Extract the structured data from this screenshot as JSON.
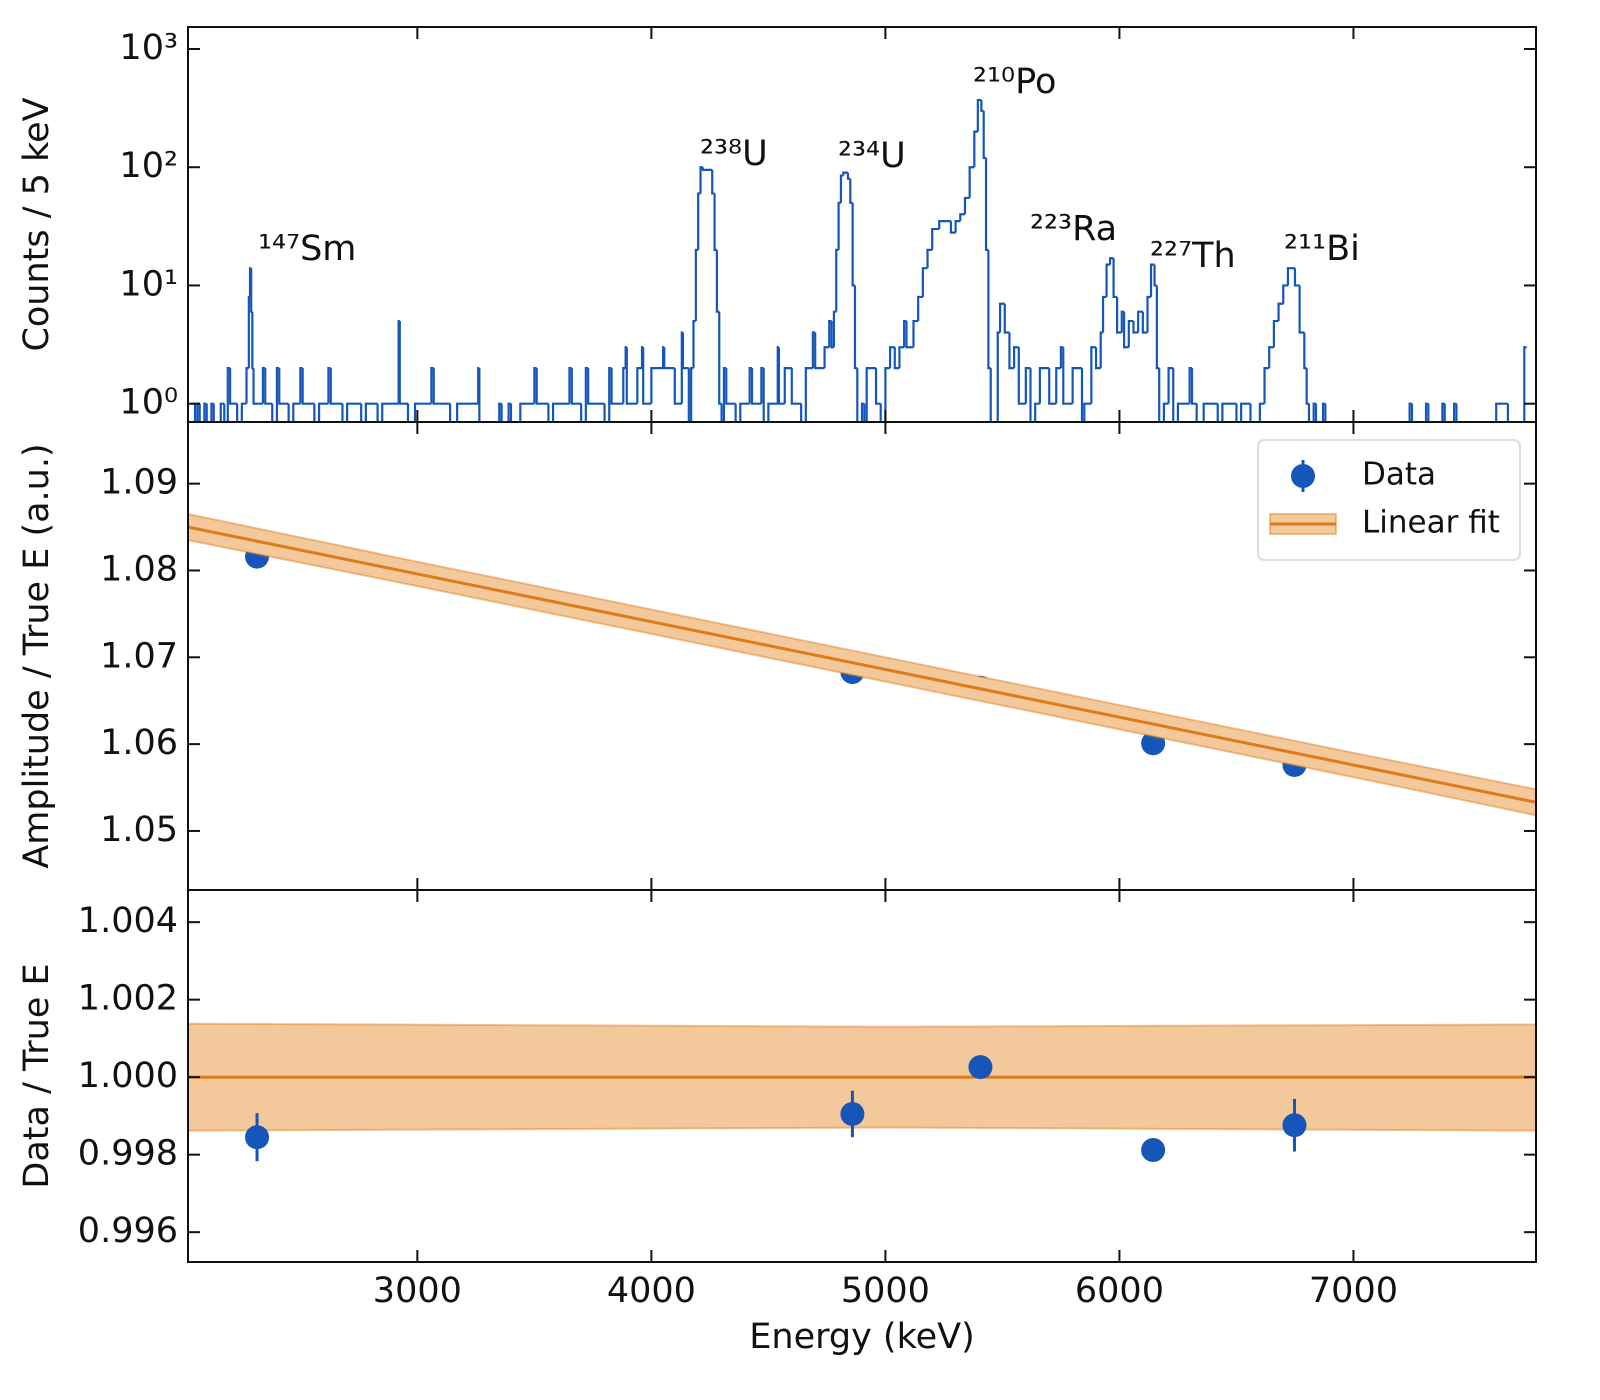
{
  "chart_data": [
    {
      "type": "histogram",
      "ylabel": "Counts / 5 keV",
      "log_y": true,
      "color": "#1656b8",
      "xlim": [
        2020,
        7780
      ],
      "xticks": [
        3000,
        4000,
        5000,
        6000,
        7000
      ],
      "ylim": [
        0.7,
        1535
      ],
      "yticks": [
        {
          "value": 1,
          "label": "10⁰"
        },
        {
          "value": 10,
          "label": "10¹"
        },
        {
          "value": 100,
          "label": "10²"
        },
        {
          "value": 1000,
          "label": "10³"
        }
      ],
      "annotations": [
        "¹⁴⁷Sm",
        "²³⁸U",
        "²³⁴U",
        "²¹⁰Po",
        "²²³Ra",
        "²²⁷Th",
        "²¹¹Bi"
      ],
      "bins": [
        2040,
        2050,
        2060,
        2070,
        2090,
        2100,
        2120,
        2130,
        2160,
        2175,
        2190,
        2200,
        2230,
        2250,
        2270,
        2280,
        2285,
        2290,
        2295,
        2300,
        2340,
        2350,
        2380,
        2400,
        2410,
        2450,
        2470,
        2500,
        2510,
        2560,
        2580,
        2620,
        2630,
        2680,
        2700,
        2760,
        2780,
        2830,
        2850,
        2920,
        2925,
        2960,
        2990,
        3060,
        3070,
        3140,
        3170,
        3260,
        3265,
        3350,
        3360,
        3390,
        3400,
        3440,
        3500,
        3510,
        3560,
        3580,
        3650,
        3660,
        3700,
        3720,
        3730,
        3800,
        3820,
        3830,
        3880,
        3890,
        3895,
        3940,
        3960,
        3965,
        4000,
        4050,
        4055,
        4100,
        4130,
        4135,
        4160,
        4170,
        4180,
        4190,
        4200,
        4210,
        4220,
        4260,
        4270,
        4280,
        4290,
        4300,
        4310,
        4320,
        4360,
        4380,
        4420,
        4430,
        4470,
        4480,
        4500,
        4540,
        4545,
        4570,
        4600,
        4640,
        4660,
        4690,
        4700,
        4740,
        4760,
        4770,
        4780,
        4790,
        4800,
        4810,
        4820,
        4840,
        4850,
        4860,
        4870,
        4880,
        4900,
        4910,
        4920,
        4960,
        4980,
        5000,
        5020,
        5040,
        5060,
        5080,
        5090,
        5120,
        5140,
        5160,
        5180,
        5200,
        5230,
        5280,
        5300,
        5320,
        5340,
        5360,
        5380,
        5395,
        5410,
        5420,
        5430,
        5440,
        5450,
        5480,
        5490,
        5510,
        5530,
        5550,
        5570,
        5600,
        5620,
        5640,
        5660,
        5700,
        5730,
        5750,
        5760,
        5800,
        5840,
        5850,
        5880,
        5900,
        5920,
        5930,
        5945,
        5960,
        5975,
        5990,
        6010,
        6020,
        6040,
        6060,
        6080,
        6100,
        6120,
        6135,
        6150,
        6160,
        6170,
        6190,
        6210,
        6230,
        6250,
        6300,
        6310,
        6330,
        6360,
        6420,
        6440,
        6500,
        6520,
        6560,
        6600,
        6620,
        6640,
        6660,
        6680,
        6700,
        6720,
        6750,
        6770,
        6790,
        6800,
        6810,
        6830,
        6840,
        6870,
        6880,
        7240,
        7250,
        7310,
        7320,
        7380,
        7390,
        7430,
        7440,
        7610,
        7660,
        7730,
        7740
      ],
      "values": [
        1,
        0,
        1,
        0,
        1,
        0,
        1,
        0,
        1,
        0,
        2,
        1,
        0,
        1,
        2,
        8,
        14,
        6,
        2,
        1,
        2,
        1,
        0,
        2,
        1,
        0,
        1,
        2,
        1,
        0,
        1,
        2,
        1,
        0,
        1,
        0,
        1,
        0,
        1,
        5,
        1,
        0,
        1,
        2,
        1,
        0,
        1,
        2,
        0,
        1,
        0,
        1,
        0,
        1,
        2,
        1,
        0,
        1,
        2,
        1,
        0,
        2,
        1,
        0,
        2,
        1,
        2,
        3,
        1,
        2,
        3,
        1,
        2,
        3,
        2,
        1,
        4,
        2,
        0,
        2,
        5,
        20,
        60,
        100,
        95,
        60,
        20,
        6,
        1,
        0,
        2,
        1,
        0,
        1,
        2,
        1,
        2,
        0,
        1,
        3,
        1,
        2,
        1,
        0,
        2,
        4,
        2,
        3,
        5,
        3,
        6,
        20,
        50,
        85,
        90,
        80,
        50,
        10,
        2,
        0,
        1,
        0,
        2,
        1,
        0,
        2,
        3,
        2,
        3,
        5,
        3,
        5,
        8,
        14,
        20,
        30,
        35,
        28,
        35,
        40,
        55,
        100,
        200,
        370,
        300,
        120,
        20,
        2,
        0,
        4,
        7,
        4,
        2,
        3,
        1,
        2,
        0,
        1,
        2,
        1,
        2,
        3,
        1,
        2,
        0,
        1,
        3,
        2,
        4,
        8,
        15,
        17,
        8,
        4,
        6,
        3,
        5,
        4,
        6,
        4,
        8,
        15,
        10,
        2,
        0,
        1,
        2,
        0,
        1,
        2,
        1,
        0,
        1,
        0,
        1,
        0,
        1,
        0,
        1,
        2,
        3,
        5,
        7,
        10,
        14,
        10,
        4,
        2,
        1,
        0,
        1,
        0,
        1,
        0,
        1,
        0,
        1,
        0,
        1,
        0,
        1,
        0,
        1,
        0,
        3
      ]
    },
    {
      "type": "scatter",
      "ylabel": "Amplitude / True E (a.u.)",
      "xlim": [
        2020,
        7780
      ],
      "xticks": [
        3000,
        4000,
        5000,
        6000,
        7000
      ],
      "ylim": [
        1.0432,
        1.0971
      ],
      "yticks": [
        1.05,
        1.06,
        1.07,
        1.08,
        1.09
      ],
      "legend": "upper right",
      "series": [
        {
          "name": "Data",
          "type": "points",
          "color": "#1656b8",
          "x": [
            2315,
            4859,
            5406,
            6144,
            6748
          ],
          "values": [
            1.0816,
            1.0683,
            1.0665,
            1.0601,
            1.0576
          ]
        },
        {
          "name": "Linear fit",
          "type": "line_band",
          "color": "#dd7a1a",
          "band_color": "#f3c99b",
          "x": [
            2020,
            3000,
            4000,
            5000,
            6000,
            7000,
            7780
          ],
          "values": [
            1.085,
            1.0796,
            1.0741,
            1.0686,
            1.0631,
            1.0576,
            1.0533
          ],
          "lower": [
            1.0835,
            1.0782,
            1.0727,
            1.0672,
            1.0617,
            1.0562,
            1.0518
          ],
          "upper": [
            1.0865,
            1.081,
            1.0755,
            1.07,
            1.0645,
            1.059,
            1.0548
          ]
        }
      ]
    },
    {
      "type": "scatter",
      "ylabel": "Data / True E",
      "xlabel": "Energy (keV)",
      "xlim": [
        2020,
        7780
      ],
      "xticks": [
        3000,
        4000,
        5000,
        6000,
        7000
      ],
      "ylim": [
        0.99523,
        1.00483
      ],
      "yticks": [
        0.996,
        0.998,
        {
          "value": 1,
          "label": "1.000"
        },
        1.002,
        1.004
      ],
      "series": [
        {
          "type": "line_band",
          "color": "#dd7a1a",
          "band_color": "#f3c99b",
          "x": [
            2020,
            5000,
            7780
          ],
          "values": [
            1,
            1,
            1
          ],
          "lower": [
            0.99862,
            0.9987,
            0.99862
          ],
          "upper": [
            1.00138,
            1.0013,
            1.00136
          ]
        },
        {
          "type": "points",
          "color": "#1656b8",
          "x": [
            2315,
            4859,
            5406,
            6144,
            6748
          ],
          "values": [
            0.99845,
            0.99905,
            1.00026,
            0.99812,
            0.99876
          ],
          "errors": [
            0.00062,
            0.0006,
            0.0001,
            0.0003,
            0.00068
          ]
        }
      ]
    }
  ]
}
